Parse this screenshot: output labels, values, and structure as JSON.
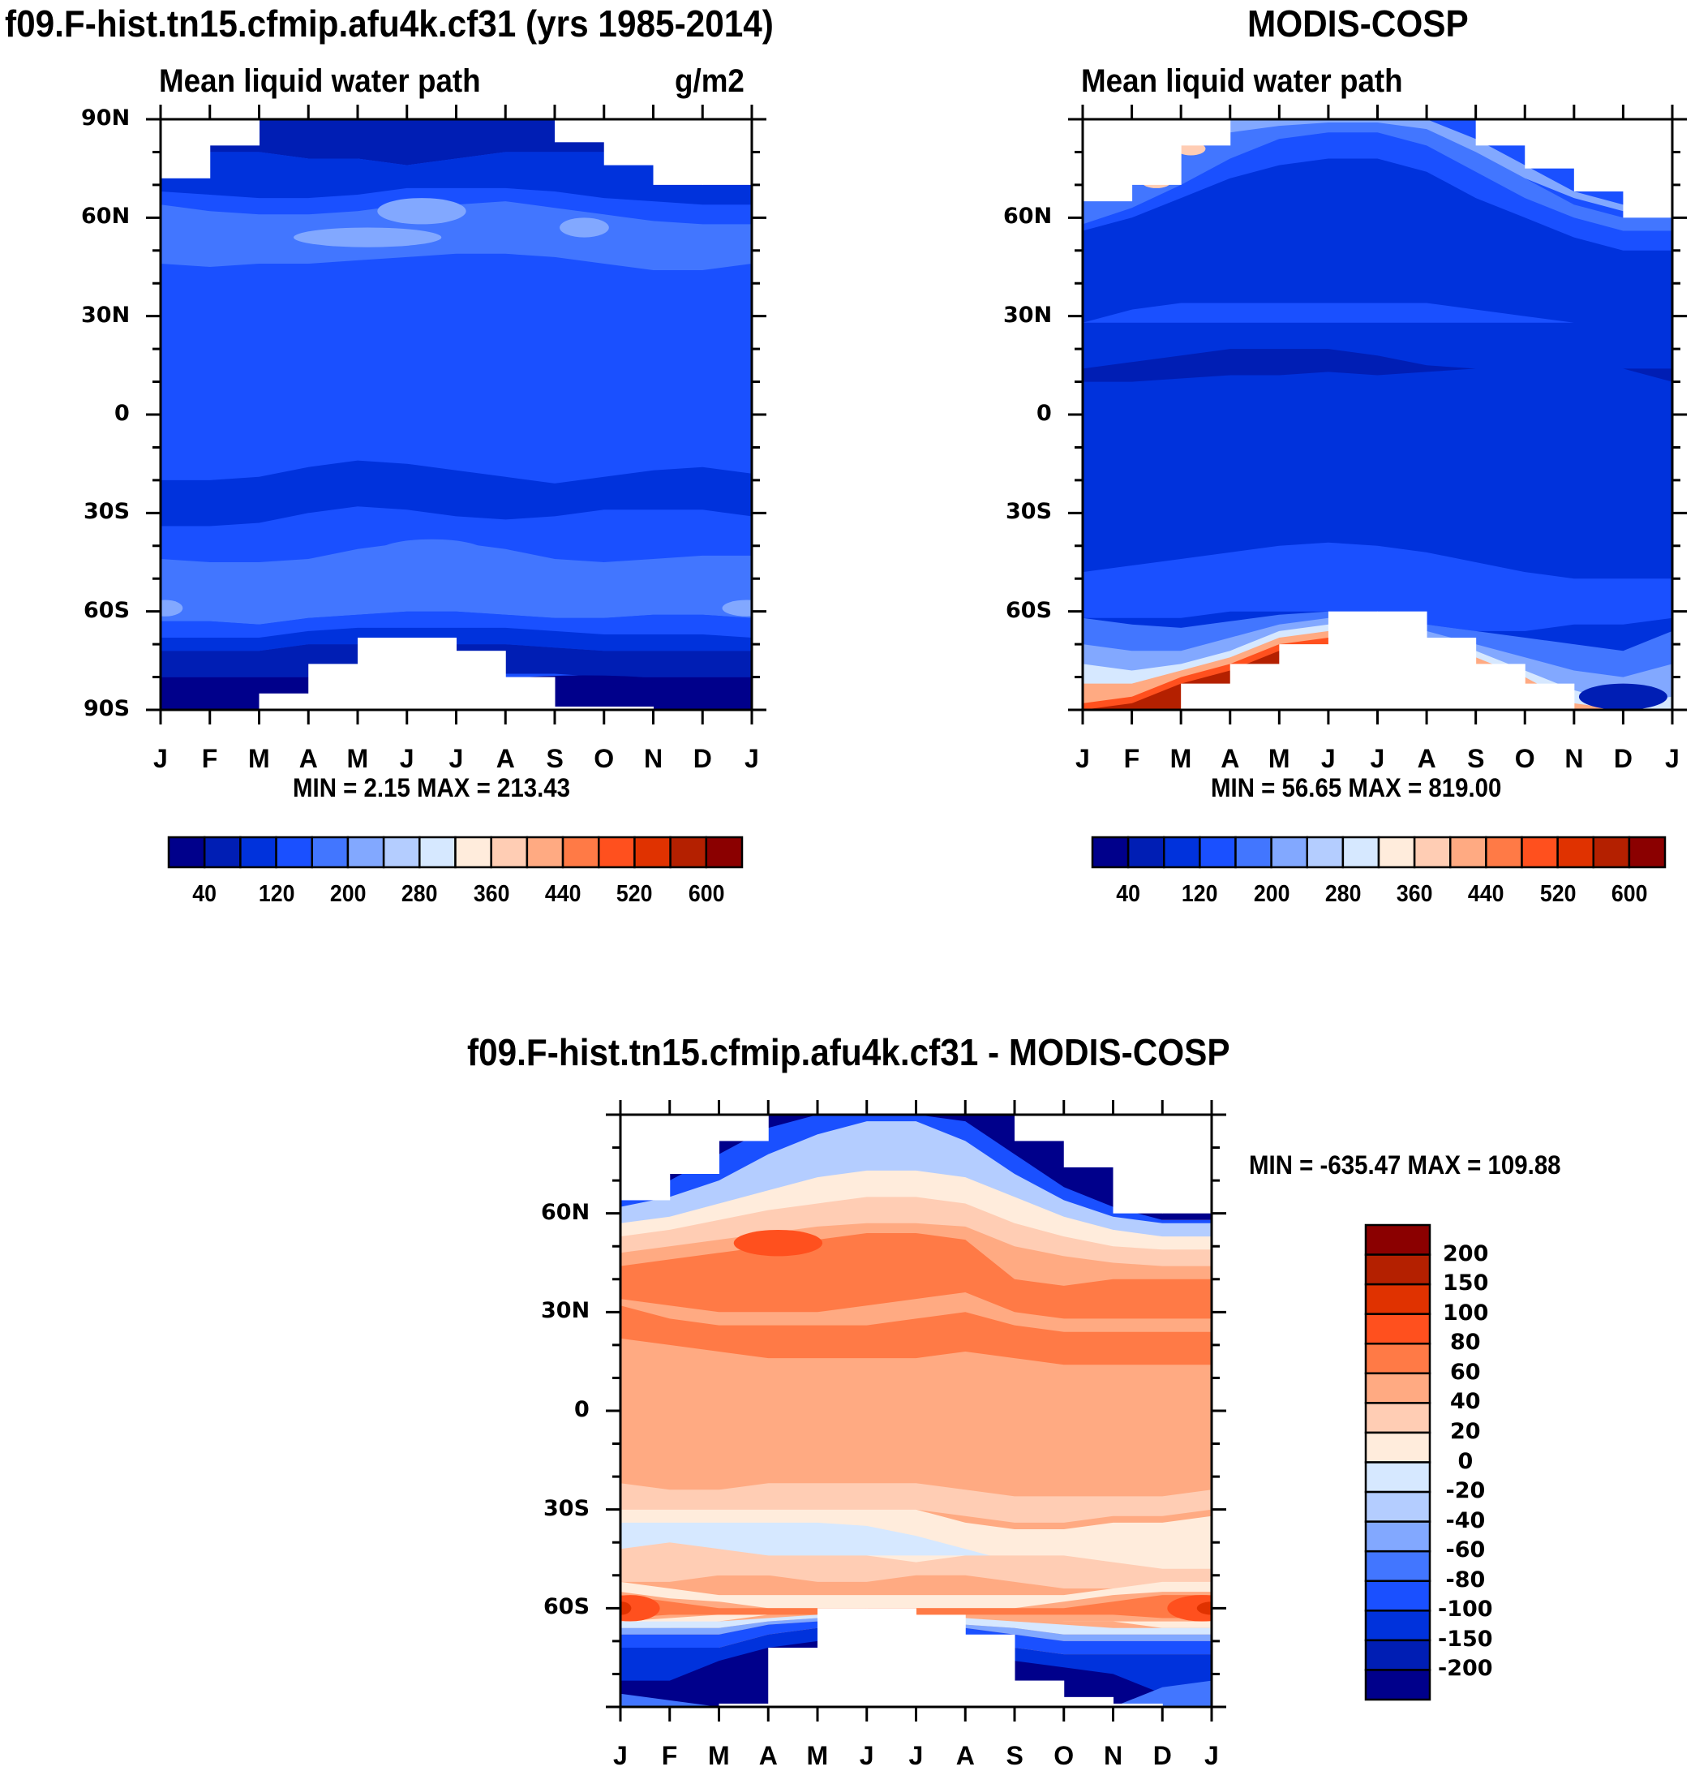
{
  "figure": {
    "panels": [
      {
        "id": "model",
        "title": "f09.F-hist.tn15.cfmip.afu4k.cf31 (yrs 1985-2014)",
        "left_label": "Mean liquid water path",
        "right_label": "g/m2",
        "minmax": "MIN =   2.15 MAX = 213.43"
      },
      {
        "id": "obs",
        "title": "MODIS-COSP",
        "left_label": "Mean liquid water path",
        "right_label": "",
        "minmax": "MIN =  56.65 MAX = 819.00"
      },
      {
        "id": "diff",
        "title": "f09.F-hist.tn15.cfmip.afu4k.cf31 - MODIS-COSP",
        "left_label": "",
        "right_label": "",
        "minmax": "MIN = -635.47 MAX = 109.88"
      }
    ]
  },
  "chart_data": [
    {
      "type": "heatmap",
      "title": "f09.F-hist.tn15.cfmip.afu4k.cf31 (yrs 1985-2014)",
      "subtitle_left": "Mean liquid water path",
      "subtitle_right": "g/m2",
      "xlabel": "",
      "ylabel": "",
      "x_tick_labels": [
        "J",
        "F",
        "M",
        "A",
        "M",
        "J",
        "J",
        "A",
        "S",
        "O",
        "N",
        "D",
        "J"
      ],
      "y_tick_labels": [
        "90N",
        "60N",
        "30N",
        "0",
        "30S",
        "60S",
        "90S"
      ],
      "y_ticks": [
        90,
        60,
        30,
        0,
        -30,
        -60,
        -90
      ],
      "ylim": [
        -90,
        90
      ],
      "xlim": [
        0,
        12
      ],
      "min": 2.15,
      "max": 213.43,
      "colorbar": {
        "orientation": "horizontal",
        "levels": [
          20,
          40,
          80,
          120,
          160,
          200,
          240,
          280,
          320,
          360,
          400,
          440,
          480,
          520,
          560,
          600
        ],
        "tick_labels": [
          "40",
          "120",
          "200",
          "280",
          "360",
          "440",
          "520",
          "600"
        ],
        "colors": [
          "#00008b",
          "#001eb4",
          "#0032dc",
          "#1a50ff",
          "#4276ff",
          "#82a8ff",
          "#b4cdff",
          "#d6e8ff",
          "#ffecdc",
          "#ffcdb4",
          "#ffaa82",
          "#ff7a46",
          "#ff501e",
          "#e03200",
          "#b42000",
          "#8b0000"
        ]
      },
      "zonal_band_colors_north_to_south": [
        "#001eb4",
        "#0032dc",
        "#1a50ff",
        "#4276ff",
        "#82a8ff",
        "#4276ff",
        "#1a50ff",
        "#1a50ff",
        "#1a50ff",
        "#0032dc",
        "#1a50ff",
        "#4276ff",
        "#82a8ff",
        "#4276ff",
        "#1a50ff",
        "#0032dc",
        "#001eb4",
        "#00008b"
      ]
    },
    {
      "type": "heatmap",
      "title": "MODIS-COSP",
      "subtitle_left": "Mean liquid water path",
      "x_tick_labels": [
        "J",
        "F",
        "M",
        "A",
        "M",
        "J",
        "J",
        "A",
        "S",
        "O",
        "N",
        "D",
        "J"
      ],
      "y_tick_labels": [
        "60N",
        "30N",
        "0",
        "30S",
        "60S"
      ],
      "y_ticks": [
        60,
        30,
        0,
        -30,
        -60
      ],
      "ylim": [
        -90,
        90
      ],
      "xlim": [
        0,
        12
      ],
      "min": 56.65,
      "max": 819.0,
      "colorbar": {
        "orientation": "horizontal",
        "levels": [
          20,
          40,
          80,
          120,
          160,
          200,
          240,
          280,
          320,
          360,
          400,
          440,
          480,
          520,
          560,
          600
        ],
        "tick_labels": [
          "40",
          "120",
          "200",
          "280",
          "360",
          "440",
          "520",
          "600"
        ],
        "colors": [
          "#00008b",
          "#001eb4",
          "#0032dc",
          "#1a50ff",
          "#4276ff",
          "#82a8ff",
          "#b4cdff",
          "#d6e8ff",
          "#ffecdc",
          "#ffcdb4",
          "#ffaa82",
          "#ff7a46",
          "#ff501e",
          "#e03200",
          "#b42000",
          "#8b0000"
        ]
      }
    },
    {
      "type": "heatmap",
      "title": "f09.F-hist.tn15.cfmip.afu4k.cf31 - MODIS-COSP",
      "x_tick_labels": [
        "J",
        "F",
        "M",
        "A",
        "M",
        "J",
        "J",
        "A",
        "S",
        "O",
        "N",
        "D",
        "J"
      ],
      "y_tick_labels": [
        "60N",
        "30N",
        "0",
        "30S",
        "60S"
      ],
      "y_ticks": [
        60,
        30,
        0,
        -30,
        -60
      ],
      "ylim": [
        -90,
        90
      ],
      "xlim": [
        0,
        12
      ],
      "min": -635.47,
      "max": 109.88,
      "colorbar": {
        "orientation": "vertical",
        "tick_labels_top_to_bottom": [
          "200",
          "150",
          "100",
          "80",
          "60",
          "40",
          "20",
          "0",
          "-20",
          "-40",
          "-60",
          "-80",
          "-100",
          "-150",
          "-200"
        ],
        "colors_top_to_bottom": [
          "#8b0000",
          "#b42000",
          "#e03200",
          "#ff501e",
          "#ff7a46",
          "#ffaa82",
          "#ffcdb4",
          "#ffecdc",
          "#d6e8ff",
          "#b4cdff",
          "#82a8ff",
          "#4276ff",
          "#1a50ff",
          "#0032dc",
          "#001eb4",
          "#00008b"
        ]
      }
    }
  ]
}
